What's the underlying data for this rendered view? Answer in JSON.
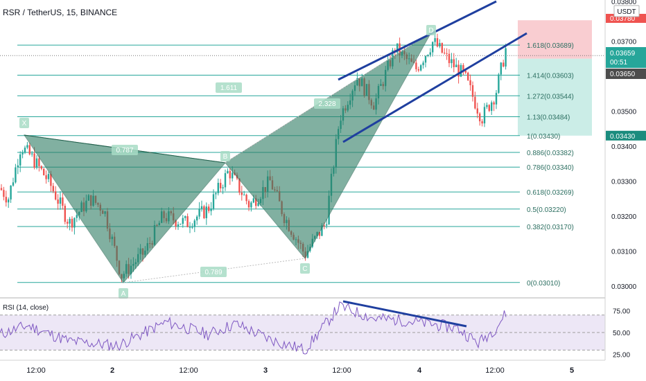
{
  "header": {
    "symbol_title": "RSR / TetherUS, 15, BINANCE",
    "currency": "USDT",
    "current_price": "0.03659",
    "countdown": "00:51",
    "last_close": "0.03650",
    "price_top_partial": "0.03800",
    "price_red_partial": "0.03780",
    "price_green": "0.03430"
  },
  "colors": {
    "fib_line": "#26a69a",
    "pattern_fill": "#2e7d64",
    "channel_line": "#1f3f9f",
    "stop_zone": "#f8c8cc",
    "target_zone": "#c5ebe4",
    "rsi_line": "#7e57c2",
    "rsi_band": "#ede7f6",
    "axis_bg": "#ffffff",
    "red_tag": "#ef5350",
    "green_tag": "#26a69a",
    "dark_tag": "#4d4d4d"
  },
  "chart_data": {
    "type": "candlestick",
    "title": "RSR / TetherUS, 15, BINANCE",
    "ylim": [
      0.0297,
      0.0381
    ],
    "y_ticks": [
      0.03,
      0.031,
      0.032,
      0.033,
      0.034,
      0.035,
      0.036,
      0.037
    ],
    "x_ticks": [
      "12:00",
      "2",
      "12:00",
      "3",
      "12:00",
      "4",
      "12:00",
      "5"
    ],
    "fib_levels": [
      {
        "label": "1.618(0.03689)",
        "value": 0.03689
      },
      {
        "label": "1.414(0.03603)",
        "value": 0.03603
      },
      {
        "label": "1.272(0.03544)",
        "value": 0.03544
      },
      {
        "label": "1.13(0.03484)",
        "value": 0.03484
      },
      {
        "label": "1(0.03430)",
        "value": 0.0343
      },
      {
        "label": "0.886(0.03382)",
        "value": 0.03382
      },
      {
        "label": "0.786(0.03340)",
        "value": 0.0334
      },
      {
        "label": "0.618(0.03269)",
        "value": 0.03269
      },
      {
        "label": "0.5(0.03220)",
        "value": 0.0322
      },
      {
        "label": "0.382(0.03170)",
        "value": 0.0317
      },
      {
        "label": "0(0.03010)",
        "value": 0.0301
      }
    ],
    "pattern_points": [
      {
        "label": "X",
        "price": 0.0343
      },
      {
        "label": "A",
        "price": 0.0301
      },
      {
        "label": "B",
        "price": 0.0335
      },
      {
        "label": "C",
        "price": 0.0308
      },
      {
        "label": "D",
        "price": 0.0371
      }
    ],
    "pattern_ratios": [
      "0.787",
      "1.611",
      "0.789",
      "2.328"
    ],
    "stop_zone": [
      0.0365,
      0.0376
    ],
    "target_zone": [
      0.0343,
      0.0365
    ],
    "rsi": {
      "label": "RSI (14, close)",
      "ylim": [
        20,
        88
      ],
      "y_ticks": [
        25.0,
        50.0,
        75.0
      ],
      "upper_band": 70,
      "mid": 50,
      "lower_band": 30,
      "last": 72,
      "tick_labels": [
        "25.00",
        "50.00",
        "75.00"
      ]
    }
  }
}
